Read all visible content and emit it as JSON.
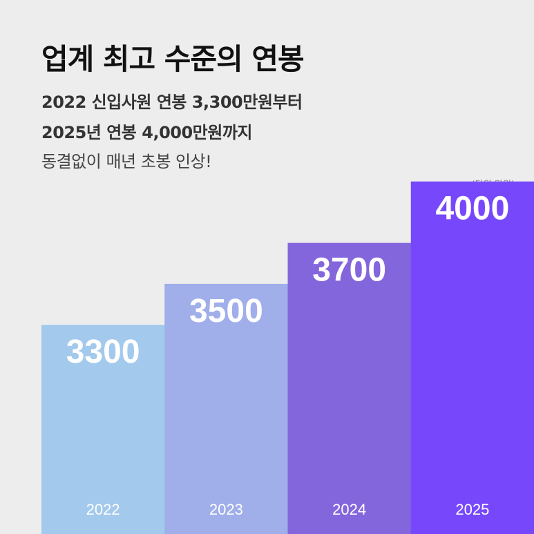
{
  "title": "업계 최고 수준의 연봉",
  "subtitle_lines": [
    "2022 신입사원 연봉 3,300만원부터",
    "2025년 연봉 4,000만원까지",
    "동결없이 매년 초봉 인상!"
  ],
  "chart_data": {
    "type": "bar",
    "categories": [
      "2022",
      "2023",
      "2024",
      "2025"
    ],
    "values": [
      3300,
      3500,
      3700,
      4000
    ],
    "value_labels": [
      "3300",
      "3500",
      "3700",
      "4000"
    ],
    "unit_label": "(단위:만원)",
    "colors": [
      "#a3c9ec",
      "#a0aeea",
      "#8466dc",
      "#7748fb"
    ],
    "label_color": "#ffffff",
    "grid": false,
    "legend": "none"
  }
}
